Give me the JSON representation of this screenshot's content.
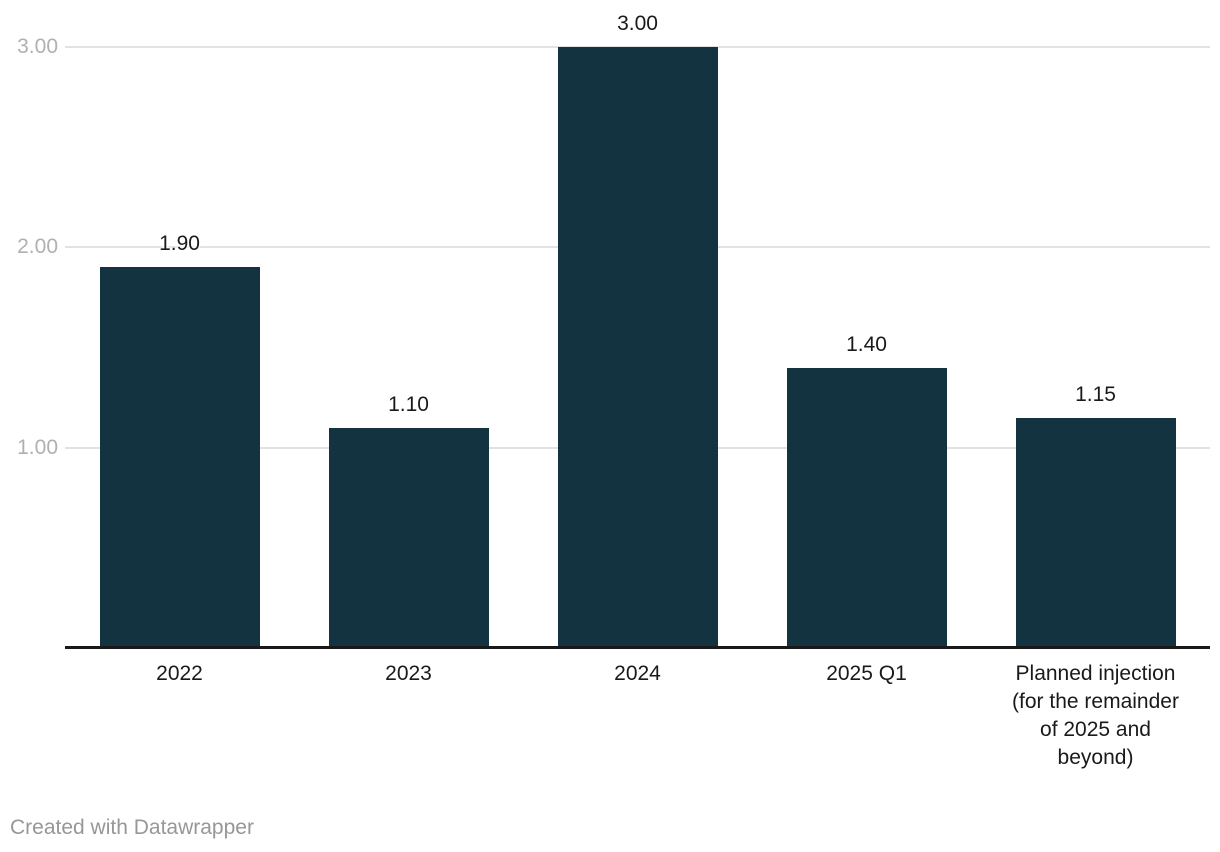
{
  "chart_data": {
    "type": "bar",
    "categories": [
      "2022",
      "2023",
      "2024",
      "2025 Q1",
      "Planned injection\n(for the remainder\nof 2025 and\nbeyond)"
    ],
    "values": [
      1.9,
      1.1,
      3.0,
      1.4,
      1.15
    ],
    "value_labels": [
      "1.90",
      "1.10",
      "3.00",
      "1.40",
      "1.15"
    ],
    "yticks": [
      {
        "value": 1.0,
        "label": "1.00"
      },
      {
        "value": 2.0,
        "label": "2.00"
      },
      {
        "value": 3.0,
        "label": "3.00"
      }
    ],
    "ylim": [
      0,
      3.0
    ],
    "title": "",
    "xlabel": "",
    "ylabel": "",
    "grid": true,
    "legend": "none",
    "bar_color": "#12333f",
    "gridline_color": "#e2e2e2",
    "axis_line_color": "#191919",
    "tick_label_color": "#b0b0b0",
    "label_color": "#1a1a1a"
  },
  "footer": {
    "credit": "Created with Datawrapper"
  }
}
